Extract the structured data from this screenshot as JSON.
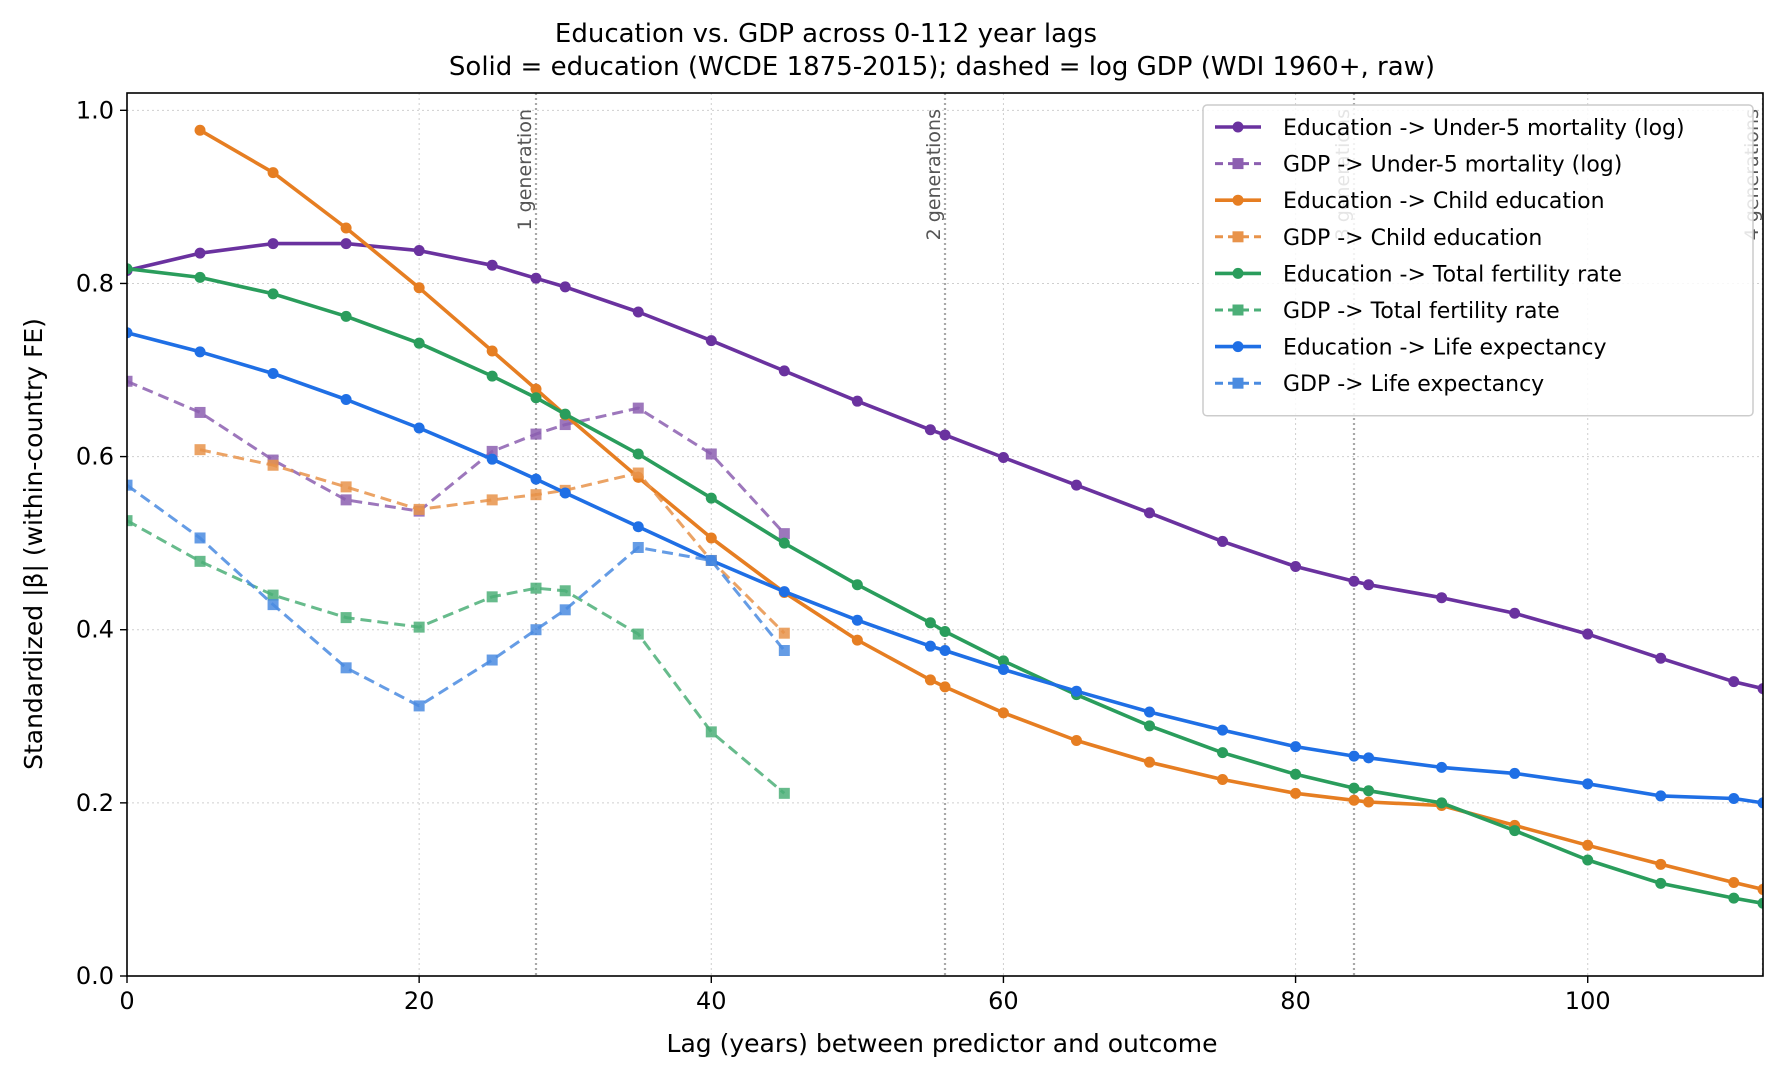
{
  "chart_data": {
    "type": "line",
    "title": "Education vs. GDP across 0-112 year lags",
    "subtitle": "Solid = education (WCDE 1875-2015); dashed = log GDP (WDI 1960+, raw)",
    "xlabel": "Lag (years) between predictor and outcome",
    "ylabel": "Standardized |β| (within-country FE)",
    "xlim": [
      0,
      112
    ],
    "ylim": [
      0,
      1.02
    ],
    "xticks": [
      0,
      20,
      40,
      60,
      80,
      100
    ],
    "yticks": [
      0.0,
      0.2,
      0.4,
      0.6,
      0.8,
      1.0
    ],
    "xtick_labels": [
      "0",
      "20",
      "40",
      "60",
      "80",
      "100"
    ],
    "ytick_labels": [
      "0.0",
      "0.2",
      "0.4",
      "0.6",
      "0.8",
      "1.0"
    ],
    "grid": true,
    "legend_position": "top-right",
    "generation_lines": [
      {
        "x": 28,
        "label": "1 generation"
      },
      {
        "x": 56,
        "label": "2 generations"
      },
      {
        "x": 84,
        "label": "3 generations"
      },
      {
        "x": 112,
        "label": "4 generations"
      }
    ],
    "series": [
      {
        "name": "Education -> Under-5 mortality (log)",
        "color": "#6a329f",
        "style": "solid",
        "marker": "circle",
        "x": [
          0,
          5,
          10,
          15,
          20,
          25,
          28,
          30,
          35,
          40,
          45,
          50,
          55,
          56,
          60,
          65,
          70,
          75,
          80,
          84,
          85,
          90,
          95,
          100,
          105,
          110,
          112
        ],
        "y": [
          0.815,
          0.835,
          0.846,
          0.846,
          0.838,
          0.821,
          0.806,
          0.796,
          0.767,
          0.734,
          0.699,
          0.664,
          0.631,
          0.625,
          0.599,
          0.567,
          0.535,
          0.502,
          0.473,
          0.456,
          0.452,
          0.437,
          0.419,
          0.395,
          0.367,
          0.34,
          0.332
        ]
      },
      {
        "name": "GDP -> Under-5 mortality (log)",
        "color": "#8c5fb0",
        "style": "dashed",
        "marker": "square",
        "x": [
          0,
          5,
          10,
          15,
          20,
          25,
          28,
          30,
          35,
          40,
          45
        ],
        "y": [
          0.687,
          0.651,
          0.596,
          0.55,
          0.537,
          0.606,
          0.626,
          0.637,
          0.656,
          0.603,
          0.511
        ]
      },
      {
        "name": "Education -> Child education",
        "color": "#e67e22",
        "style": "solid",
        "marker": "circle",
        "x": [
          5,
          10,
          15,
          20,
          25,
          28,
          30,
          35,
          40,
          45,
          50,
          55,
          56,
          60,
          65,
          70,
          75,
          80,
          84,
          85,
          90,
          95,
          100,
          105,
          110,
          112
        ],
        "y": [
          0.977,
          0.928,
          0.864,
          0.795,
          0.722,
          0.678,
          0.648,
          0.576,
          0.506,
          0.443,
          0.388,
          0.342,
          0.334,
          0.304,
          0.272,
          0.247,
          0.227,
          0.211,
          0.203,
          0.201,
          0.197,
          0.174,
          0.151,
          0.129,
          0.108,
          0.1
        ]
      },
      {
        "name": "GDP -> Child education",
        "color": "#e8934a",
        "style": "dashed",
        "marker": "square",
        "x": [
          5,
          10,
          15,
          20,
          25,
          28,
          30,
          35,
          40,
          45
        ],
        "y": [
          0.608,
          0.59,
          0.565,
          0.539,
          0.55,
          0.556,
          0.561,
          0.581,
          0.48,
          0.396
        ]
      },
      {
        "name": "Education -> Total fertility rate",
        "color": "#2a9d5c",
        "style": "solid",
        "marker": "circle",
        "x": [
          0,
          5,
          10,
          15,
          20,
          25,
          28,
          30,
          35,
          40,
          45,
          50,
          55,
          56,
          60,
          65,
          70,
          75,
          80,
          84,
          85,
          90,
          95,
          100,
          105,
          110,
          112
        ],
        "y": [
          0.817,
          0.807,
          0.788,
          0.762,
          0.731,
          0.693,
          0.668,
          0.649,
          0.603,
          0.552,
          0.5,
          0.452,
          0.408,
          0.398,
          0.364,
          0.325,
          0.289,
          0.258,
          0.233,
          0.217,
          0.214,
          0.2,
          0.168,
          0.134,
          0.107,
          0.09,
          0.084
        ]
      },
      {
        "name": "GDP -> Total fertility rate",
        "color": "#4caf78",
        "style": "dashed",
        "marker": "square",
        "x": [
          0,
          5,
          10,
          15,
          20,
          25,
          28,
          30,
          35,
          40,
          45
        ],
        "y": [
          0.526,
          0.479,
          0.44,
          0.414,
          0.403,
          0.438,
          0.448,
          0.445,
          0.395,
          0.282,
          0.211
        ]
      },
      {
        "name": "Education -> Life expectancy",
        "color": "#1f6fe5",
        "style": "solid",
        "marker": "circle",
        "x": [
          0,
          5,
          10,
          15,
          20,
          25,
          28,
          30,
          35,
          40,
          45,
          50,
          55,
          56,
          60,
          65,
          70,
          75,
          80,
          84,
          85,
          90,
          95,
          100,
          105,
          110,
          112
        ],
        "y": [
          0.743,
          0.721,
          0.696,
          0.666,
          0.633,
          0.597,
          0.574,
          0.558,
          0.519,
          0.48,
          0.444,
          0.411,
          0.381,
          0.376,
          0.354,
          0.329,
          0.305,
          0.284,
          0.265,
          0.254,
          0.252,
          0.241,
          0.234,
          0.222,
          0.208,
          0.205,
          0.2
        ]
      },
      {
        "name": "GDP -> Life expectancy",
        "color": "#4a8be0",
        "style": "dashed",
        "marker": "square",
        "x": [
          0,
          5,
          10,
          15,
          20,
          25,
          28,
          30,
          35,
          40,
          45
        ],
        "y": [
          0.567,
          0.506,
          0.429,
          0.356,
          0.312,
          0.365,
          0.4,
          0.423,
          0.495,
          0.48,
          0.376
        ]
      }
    ]
  }
}
